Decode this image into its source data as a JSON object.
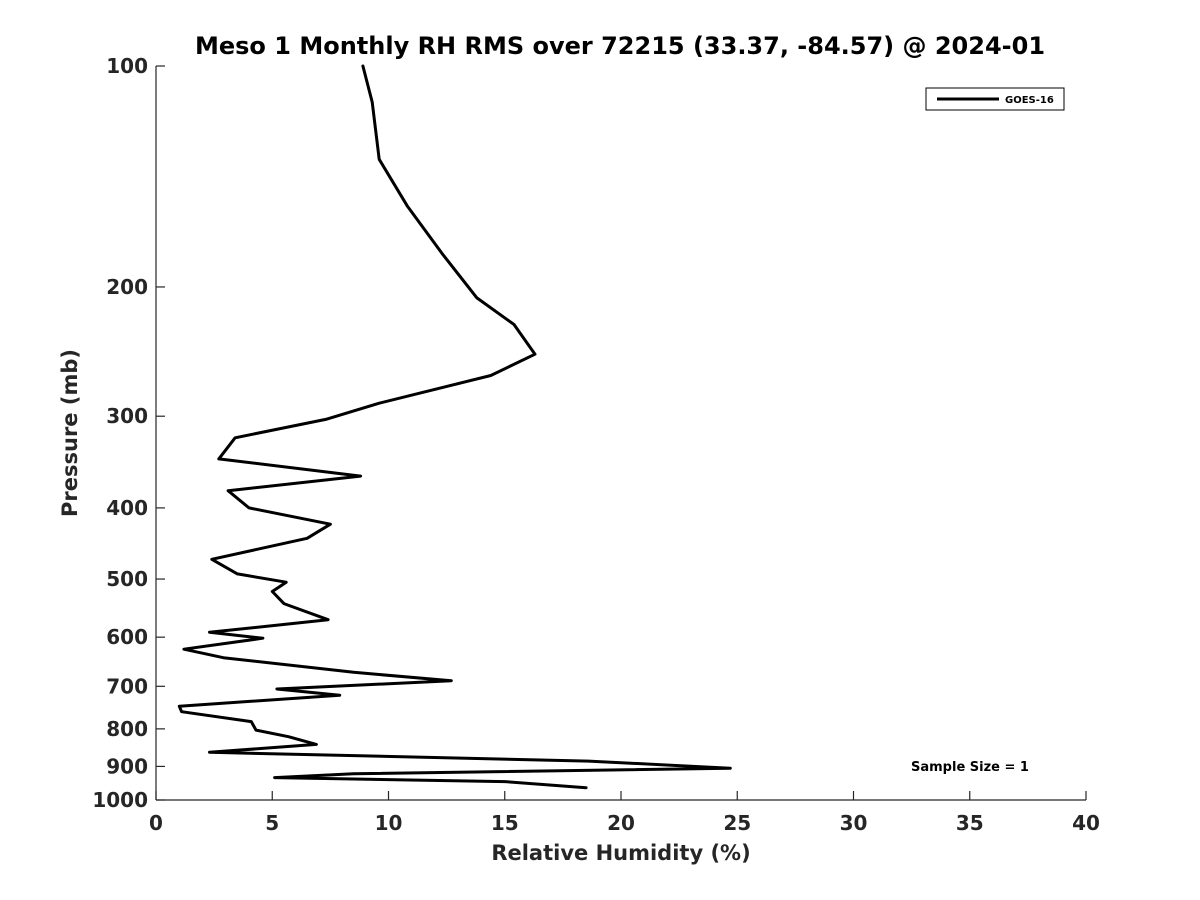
{
  "chart_data": {
    "type": "line",
    "title": "Meso 1 Monthly RH RMS over 72215 (33.37, -84.57) @ 2024-01",
    "xlabel": "Relative Humidity (%)",
    "ylabel": "Pressure (mb)",
    "xlim": [
      0,
      40
    ],
    "ylim": [
      1000,
      100
    ],
    "y_scale": "log",
    "x_ticks": [
      0,
      5,
      10,
      15,
      20,
      25,
      30,
      35,
      40
    ],
    "y_ticks": [
      100,
      200,
      300,
      400,
      500,
      600,
      700,
      800,
      900,
      1000
    ],
    "grid": false,
    "legend_position": "top-right",
    "series": [
      {
        "name": "GOES-16",
        "color": "#000000",
        "points": [
          [
            8.9,
            100
          ],
          [
            9.3,
            112
          ],
          [
            9.6,
            134
          ],
          [
            10.8,
            155
          ],
          [
            12.3,
            180
          ],
          [
            13.8,
            207
          ],
          [
            15.4,
            225
          ],
          [
            16.3,
            247
          ],
          [
            14.4,
            264
          ],
          [
            9.6,
            288
          ],
          [
            7.3,
            303
          ],
          [
            3.4,
            321
          ],
          [
            2.7,
            343
          ],
          [
            8.8,
            362
          ],
          [
            3.1,
            379
          ],
          [
            4.0,
            400
          ],
          [
            7.5,
            421
          ],
          [
            6.5,
            440
          ],
          [
            2.4,
            470
          ],
          [
            3.5,
            492
          ],
          [
            5.6,
            505
          ],
          [
            5.0,
            520
          ],
          [
            5.5,
            540
          ],
          [
            7.4,
            568
          ],
          [
            2.3,
            591
          ],
          [
            4.6,
            602
          ],
          [
            1.2,
            623
          ],
          [
            2.9,
            640
          ],
          [
            8.5,
            670
          ],
          [
            12.7,
            688
          ],
          [
            5.2,
            706
          ],
          [
            7.9,
            720
          ],
          [
            1.0,
            745
          ],
          [
            1.1,
            758
          ],
          [
            4.1,
            782
          ],
          [
            4.3,
            803
          ],
          [
            5.7,
            820
          ],
          [
            6.9,
            840
          ],
          [
            2.3,
            861
          ],
          [
            18.6,
            885
          ],
          [
            24.7,
            905
          ],
          [
            8.5,
            921
          ],
          [
            5.1,
            932
          ],
          [
            15.0,
            944
          ],
          [
            18.5,
            962
          ]
        ]
      }
    ],
    "annotations": [
      "Sample Size = 1"
    ]
  }
}
